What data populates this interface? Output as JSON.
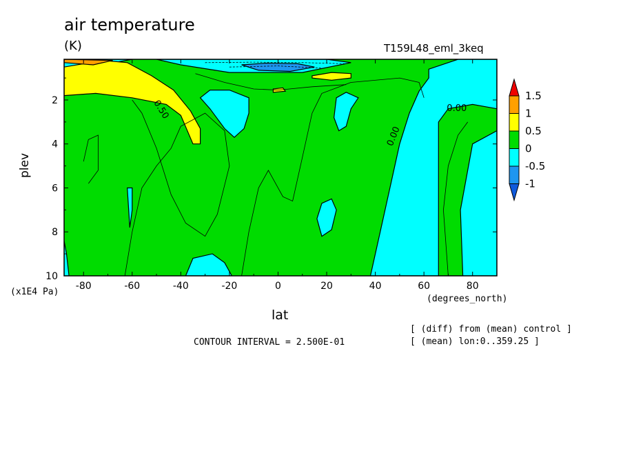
{
  "header": {
    "title": "air temperature",
    "units": "(K)",
    "run_name": "T159L48_eml_3keq"
  },
  "footer": {
    "contour_interval": "CONTOUR INTERVAL = 2.500E-01",
    "info_line1": "[ (diff) from (mean) control ]",
    "info_line2": "[ (mean) lon:0..359.25 ]"
  },
  "chart_data": {
    "type": "contour",
    "variable": "air temperature",
    "units": "K",
    "xlabel": "lat",
    "xunit": "(degrees_north)",
    "ylabel": "plev",
    "yunit": "(x1E4 Pa)",
    "xlim": [
      -88,
      90
    ],
    "ylim": [
      10,
      0.15
    ],
    "x_ticks": [
      -80,
      -60,
      -40,
      -20,
      0,
      20,
      40,
      60,
      80
    ],
    "x_tick_labels": [
      "-80",
      "-60",
      "-40",
      "-20",
      "0",
      "20",
      "40",
      "60",
      "80"
    ],
    "y_ticks": [
      2,
      4,
      6,
      8,
      10
    ],
    "y_tick_labels": [
      "2",
      "4",
      "6",
      "8",
      "10"
    ],
    "contour_interval": 0.25,
    "color_levels": [
      -1,
      -0.5,
      0,
      0.5,
      1,
      1.5
    ],
    "colorbar_labels": [
      "1.5",
      "1",
      "0.5",
      "0",
      "-0.5",
      "-1"
    ],
    "colors": {
      "below_-1": "#0f5adc",
      "-1_to_-0.5": "#1e96f0",
      "-0.5_to_0": "#00ffff",
      "0_to_0.5": "#00dc00",
      "0.5_to_1": "#ffff00",
      "1_to_1.5": "#ffa000",
      "above_1.5": "#f00000"
    },
    "contour_labels": [
      "0.00",
      "0.00",
      "0.50"
    ],
    "regions": [
      {
        "level": "-0.5_to_0",
        "points": [
          [
            38,
            10
          ],
          [
            42,
            8
          ],
          [
            46,
            6
          ],
          [
            50,
            4
          ],
          [
            54,
            2.6
          ],
          [
            58,
            1.6
          ],
          [
            62,
            1.0
          ],
          [
            62,
            0.6
          ],
          [
            74,
            0.15
          ],
          [
            90,
            0.15
          ],
          [
            90,
            10
          ]
        ]
      },
      {
        "level": "-0.5_to_0",
        "points": [
          [
            -88,
            0.15
          ],
          [
            -60,
            0.15
          ],
          [
            -75,
            0.45
          ],
          [
            -88,
            0.5
          ]
        ]
      },
      {
        "level": "-0.5_to_0",
        "points": [
          [
            -50,
            0.15
          ],
          [
            20,
            0.15
          ],
          [
            30,
            0.3
          ],
          [
            10,
            0.75
          ],
          [
            -20,
            0.75
          ],
          [
            -40,
            0.4
          ]
        ]
      },
      {
        "level": "0_to_0.5",
        "points": [
          [
            66,
            10
          ],
          [
            66,
            3
          ],
          [
            70,
            2.4
          ],
          [
            80,
            2.2
          ],
          [
            90,
            2.4
          ],
          [
            90,
            10
          ]
        ]
      },
      {
        "level": "-0.5_to_0",
        "points": [
          [
            76,
            10
          ],
          [
            75,
            7
          ],
          [
            80,
            4
          ],
          [
            90,
            3.4
          ],
          [
            90,
            10
          ]
        ]
      },
      {
        "level": "-0.5_to_0",
        "points": [
          [
            -32,
            1.9
          ],
          [
            -28,
            1.55
          ],
          [
            -20,
            1.55
          ],
          [
            -12,
            1.9
          ],
          [
            -12,
            2.6
          ],
          [
            -14,
            3.3
          ],
          [
            -18,
            3.7
          ],
          [
            -22,
            3.3
          ],
          [
            -28,
            2.4
          ]
        ]
      },
      {
        "level": "-0.5_to_0",
        "points": [
          [
            24,
            1.9
          ],
          [
            28,
            1.65
          ],
          [
            33,
            1.9
          ],
          [
            30,
            2.4
          ],
          [
            28,
            3.2
          ],
          [
            25,
            3.4
          ],
          [
            23,
            2.8
          ]
        ]
      },
      {
        "level": "-0.5_to_0",
        "points": [
          [
            16,
            7.4
          ],
          [
            18,
            6.7
          ],
          [
            22,
            6.5
          ],
          [
            24,
            7.0
          ],
          [
            22,
            7.9
          ],
          [
            18,
            8.2
          ]
        ]
      },
      {
        "level": "-0.5_to_0",
        "points": [
          [
            -62,
            6.0
          ],
          [
            -61,
            7.8
          ],
          [
            -60,
            7.0
          ],
          [
            -60,
            6.0
          ]
        ]
      },
      {
        "level": "-0.5_to_0",
        "points": [
          [
            -88,
            8.4
          ],
          [
            -87,
            9.0
          ],
          [
            -86,
            10
          ],
          [
            -88,
            10
          ]
        ]
      },
      {
        "level": "-0.5_to_0",
        "points": [
          [
            -38,
            10
          ],
          [
            -35,
            9.2
          ],
          [
            -27,
            9.0
          ],
          [
            -22,
            9.4
          ],
          [
            -19,
            10
          ]
        ]
      },
      {
        "level": "0.5_to_1",
        "points": [
          [
            -88,
            0.5
          ],
          [
            -72,
            0.2
          ],
          [
            -62,
            0.3
          ],
          [
            -52,
            0.9
          ],
          [
            -43,
            1.55
          ],
          [
            -36,
            2.5
          ],
          [
            -32,
            3.3
          ],
          [
            -32,
            4.0
          ],
          [
            -35,
            4.0
          ],
          [
            -40,
            2.7
          ],
          [
            -46,
            2.2
          ],
          [
            -60,
            1.9
          ],
          [
            -75,
            1.7
          ],
          [
            -88,
            1.8
          ]
        ]
      },
      {
        "level": "0.5_to_1",
        "points": [
          [
            14,
            0.9
          ],
          [
            22,
            0.75
          ],
          [
            30,
            0.8
          ],
          [
            30,
            1.0
          ],
          [
            22,
            1.1
          ],
          [
            14,
            1.0
          ]
        ]
      },
      {
        "level": "0.5_to_1",
        "points": [
          [
            -2,
            1.5
          ],
          [
            2,
            1.45
          ],
          [
            3,
            1.6
          ],
          [
            -2,
            1.65
          ]
        ]
      },
      {
        "level": "1_to_1.5",
        "points": [
          [
            -88,
            0.15
          ],
          [
            -68,
            0.2
          ],
          [
            -76,
            0.4
          ],
          [
            -88,
            0.3
          ]
        ]
      },
      {
        "level": "-1_to_-0.5",
        "points": [
          [
            -15,
            0.4
          ],
          [
            -5,
            0.33
          ],
          [
            8,
            0.35
          ],
          [
            15,
            0.5
          ],
          [
            5,
            0.7
          ],
          [
            -8,
            0.65
          ]
        ]
      }
    ]
  }
}
